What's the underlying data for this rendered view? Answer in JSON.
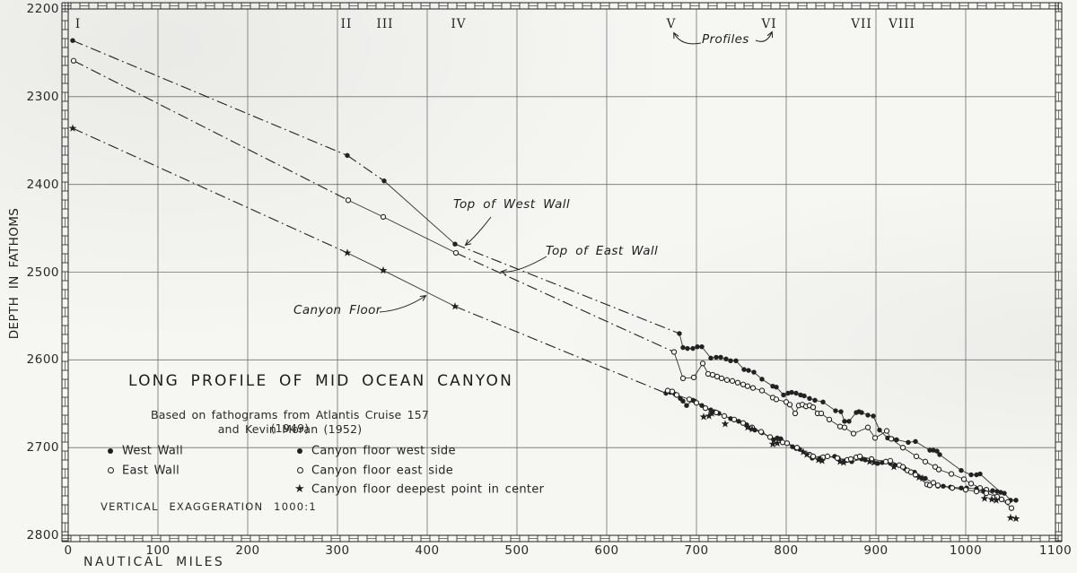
{
  "chart_data": {
    "type": "line",
    "title": "LONG PROFILE OF MID OCEAN CANYON",
    "subtitle_line1": "Based on fathograms from Atlantis Cruise 157 (1949)",
    "subtitle_line2": "and Kevin Moran (1952)",
    "vertical_exaggeration": "VERTICAL EXAGGERATION 1000:1",
    "xlabel": "NAUTICAL MILES",
    "ylabel": "DEPTH IN FATHOMS",
    "xlim": [
      0,
      1100
    ],
    "ylim": [
      2200,
      2800
    ],
    "depth_axis_increases_downward": true,
    "grid": true,
    "x_ticks": [
      0,
      100,
      200,
      300,
      400,
      500,
      600,
      700,
      800,
      900,
      1000,
      1100
    ],
    "y_ticks": [
      2200,
      2300,
      2400,
      2500,
      2600,
      2700,
      2800
    ],
    "colors": {
      "ink": "#222222",
      "grid": "#707070",
      "paper": "#f6f6f3"
    },
    "profiles": {
      "note": "Profiles",
      "items": [
        {
          "label": "I",
          "mile": 11
        },
        {
          "label": "II",
          "mile": 310
        },
        {
          "label": "III",
          "mile": 353
        },
        {
          "label": "IV",
          "mile": 435
        },
        {
          "label": "V",
          "mile": 672
        },
        {
          "label": "VI",
          "mile": 781
        },
        {
          "label": "VII",
          "mile": 884
        },
        {
          "label": "VIII",
          "mile": 929
        }
      ]
    },
    "annotations": [
      {
        "text": "Top of West Wall"
      },
      {
        "text": "Top of East Wall"
      },
      {
        "text": "Canyon Floor"
      }
    ],
    "legend": [
      {
        "marker": "filled-circle",
        "label": "West Wall"
      },
      {
        "marker": "open-circle",
        "label": "East Wall"
      },
      {
        "marker": "filled-circle",
        "label": "Canyon floor west side"
      },
      {
        "marker": "open-circle",
        "label": "Canyon floor east side"
      },
      {
        "marker": "star",
        "label": "Canyon floor deepest point in center"
      }
    ],
    "series": [
      {
        "id": "west_wall",
        "name": "Top of West Wall",
        "marker": "filled-circle",
        "profile_points": [
          [
            5,
            2236
          ],
          [
            311,
            2367
          ],
          [
            352,
            2396
          ],
          [
            431,
            2468
          ]
        ],
        "solid_connector_segments": [
          2
        ],
        "connector_to": [
          681,
          2570
        ],
        "connect_dense": true,
        "dense_points": [
          [
            681,
            2570
          ],
          [
            685,
            2586
          ],
          [
            690,
            2587
          ],
          [
            696,
            2587
          ],
          [
            701,
            2585
          ],
          [
            706,
            2585
          ],
          [
            716,
            2598
          ],
          [
            722,
            2597
          ],
          [
            727,
            2597
          ],
          [
            733,
            2599
          ],
          [
            738,
            2601
          ],
          [
            744,
            2601
          ],
          [
            753,
            2611
          ],
          [
            758,
            2612
          ],
          [
            764,
            2614
          ],
          [
            773,
            2622
          ],
          [
            785,
            2630
          ],
          [
            789,
            2631
          ],
          [
            797,
            2640
          ],
          [
            802,
            2638
          ],
          [
            806,
            2637
          ],
          [
            811,
            2638
          ],
          [
            816,
            2640
          ],
          [
            820,
            2641
          ],
          [
            826,
            2644
          ],
          [
            832,
            2646
          ],
          [
            841,
            2648
          ],
          [
            855,
            2658
          ],
          [
            861,
            2659
          ],
          [
            865,
            2670
          ],
          [
            870,
            2670
          ],
          [
            878,
            2660
          ],
          [
            881,
            2659
          ],
          [
            884,
            2660
          ],
          [
            891,
            2663
          ],
          [
            897,
            2664
          ],
          [
            904,
            2680
          ],
          [
            913,
            2689
          ],
          [
            918,
            2690
          ],
          [
            923,
            2691
          ],
          [
            936,
            2694
          ],
          [
            944,
            2693
          ],
          [
            960,
            2703
          ],
          [
            964,
            2703
          ],
          [
            968,
            2704
          ],
          [
            971,
            2708
          ],
          [
            995,
            2726
          ],
          [
            1006,
            2731
          ],
          [
            1012,
            2731
          ],
          [
            1016,
            2730
          ],
          [
            1039,
            2751
          ],
          [
            1043,
            2752
          ],
          [
            1050,
            2760
          ],
          [
            1056,
            2760
          ]
        ]
      },
      {
        "id": "east_wall",
        "name": "Top of East Wall",
        "marker": "open-circle",
        "profile_points": [
          [
            6,
            2259
          ],
          [
            312,
            2418
          ],
          [
            351,
            2437
          ],
          [
            432,
            2478
          ]
        ],
        "solid_connector_segments": [
          1,
          2
        ],
        "connector_to": [
          675,
          2591
        ],
        "connect_dense": true,
        "dense_points": [
          [
            675,
            2591
          ],
          [
            685,
            2621
          ],
          [
            697,
            2620
          ],
          [
            707,
            2604
          ],
          [
            713,
            2616
          ],
          [
            718,
            2617
          ],
          [
            723,
            2619
          ],
          [
            728,
            2621
          ],
          [
            734,
            2623
          ],
          [
            740,
            2624
          ],
          [
            746,
            2626
          ],
          [
            752,
            2628
          ],
          [
            757,
            2630
          ],
          [
            763,
            2632
          ],
          [
            773,
            2635
          ],
          [
            785,
            2643
          ],
          [
            789,
            2645
          ],
          [
            800,
            2648
          ],
          [
            804,
            2651
          ],
          [
            810,
            2661
          ],
          [
            814,
            2652
          ],
          [
            818,
            2651
          ],
          [
            822,
            2653
          ],
          [
            826,
            2652
          ],
          [
            830,
            2654
          ],
          [
            835,
            2661
          ],
          [
            839,
            2661
          ],
          [
            848,
            2668
          ],
          [
            860,
            2676
          ],
          [
            865,
            2677
          ],
          [
            875,
            2684
          ],
          [
            891,
            2677
          ],
          [
            899,
            2689
          ],
          [
            912,
            2681
          ],
          [
            917,
            2690
          ],
          [
            930,
            2700
          ],
          [
            945,
            2710
          ],
          [
            955,
            2716
          ],
          [
            966,
            2722
          ],
          [
            970,
            2725
          ],
          [
            984,
            2730
          ],
          [
            998,
            2736
          ],
          [
            1006,
            2741
          ],
          [
            1016,
            2746
          ],
          [
            1023,
            2748
          ],
          [
            1040,
            2759
          ],
          [
            1051,
            2769
          ]
        ]
      },
      {
        "id": "floor_west",
        "name": "Canyon floor west side",
        "marker": "filled-circle",
        "profile_points": [],
        "connect_dense": true,
        "dense_points": [
          [
            666,
            2638
          ],
          [
            671,
            2637
          ],
          [
            676,
            2639
          ],
          [
            682,
            2644
          ],
          [
            685,
            2647
          ],
          [
            689,
            2652
          ],
          [
            696,
            2646
          ],
          [
            698,
            2647
          ],
          [
            706,
            2652
          ],
          [
            716,
            2657
          ],
          [
            720,
            2659
          ],
          [
            725,
            2661
          ],
          [
            738,
            2667
          ],
          [
            747,
            2670
          ],
          [
            756,
            2674
          ],
          [
            761,
            2678
          ],
          [
            765,
            2680
          ],
          [
            773,
            2683
          ],
          [
            786,
            2691
          ],
          [
            790,
            2689
          ],
          [
            794,
            2690
          ],
          [
            807,
            2699
          ],
          [
            811,
            2701
          ],
          [
            815,
            2702
          ],
          [
            829,
            2712
          ],
          [
            838,
            2712
          ],
          [
            854,
            2710
          ],
          [
            858,
            2712
          ],
          [
            866,
            2715
          ],
          [
            873,
            2716
          ],
          [
            884,
            2713
          ],
          [
            888,
            2714
          ],
          [
            902,
            2718
          ],
          [
            907,
            2717
          ],
          [
            916,
            2718
          ],
          [
            921,
            2720
          ],
          [
            932,
            2724
          ],
          [
            943,
            2728
          ],
          [
            955,
            2735
          ],
          [
            969,
            2744
          ],
          [
            975,
            2744
          ],
          [
            983,
            2745
          ],
          [
            995,
            2746
          ],
          [
            1001,
            2746
          ],
          [
            1012,
            2747
          ],
          [
            1020,
            2750
          ],
          [
            1030,
            2749
          ],
          [
            1035,
            2750
          ]
        ]
      },
      {
        "id": "floor_east",
        "name": "Canyon floor east side",
        "marker": "open-circle",
        "profile_points": [],
        "connect_dense": true,
        "dense_points": [
          [
            668,
            2635
          ],
          [
            673,
            2636
          ],
          [
            678,
            2640
          ],
          [
            692,
            2645
          ],
          [
            700,
            2649
          ],
          [
            710,
            2655
          ],
          [
            722,
            2660
          ],
          [
            731,
            2664
          ],
          [
            742,
            2668
          ],
          [
            752,
            2672
          ],
          [
            762,
            2677
          ],
          [
            772,
            2682
          ],
          [
            782,
            2688
          ],
          [
            796,
            2694
          ],
          [
            801,
            2695
          ],
          [
            812,
            2700
          ],
          [
            826,
            2708
          ],
          [
            830,
            2710
          ],
          [
            841,
            2711
          ],
          [
            846,
            2710
          ],
          [
            857,
            2712
          ],
          [
            868,
            2714
          ],
          [
            872,
            2713
          ],
          [
            878,
            2711
          ],
          [
            882,
            2710
          ],
          [
            895,
            2713
          ],
          [
            911,
            2716
          ],
          [
            916,
            2715
          ],
          [
            926,
            2720
          ],
          [
            930,
            2722
          ],
          [
            935,
            2726
          ],
          [
            939,
            2728
          ],
          [
            944,
            2731
          ],
          [
            957,
            2742
          ],
          [
            960,
            2743
          ],
          [
            964,
            2740
          ],
          [
            969,
            2743
          ],
          [
            985,
            2746
          ],
          [
            1000,
            2748
          ],
          [
            1012,
            2750
          ],
          [
            1023,
            2752
          ],
          [
            1035,
            2756
          ],
          [
            1047,
            2762
          ]
        ]
      },
      {
        "id": "floor_deepest",
        "name": "Canyon floor deepest point in center",
        "marker": "star",
        "profile_points": [
          [
            5,
            2336
          ],
          [
            311,
            2478
          ],
          [
            351,
            2498
          ],
          [
            431,
            2539
          ]
        ],
        "solid_connector_segments": [
          1,
          2
        ],
        "connector_to": [
          666,
          2638
        ],
        "connect_dense": false,
        "dense_points": [
          [
            708,
            2665
          ],
          [
            714,
            2664
          ],
          [
            717,
            2661
          ],
          [
            732,
            2673
          ],
          [
            757,
            2677
          ],
          [
            762,
            2679
          ],
          [
            785,
            2696
          ],
          [
            790,
            2695
          ],
          [
            819,
            2705
          ],
          [
            823,
            2708
          ],
          [
            836,
            2714
          ],
          [
            840,
            2715
          ],
          [
            860,
            2716
          ],
          [
            864,
            2717
          ],
          [
            893,
            2716
          ],
          [
            898,
            2717
          ],
          [
            920,
            2722
          ],
          [
            948,
            2734
          ],
          [
            952,
            2735
          ],
          [
            1021,
            2758
          ],
          [
            1029,
            2759
          ],
          [
            1034,
            2760
          ],
          [
            1050,
            2780
          ],
          [
            1056,
            2781
          ]
        ]
      }
    ]
  }
}
